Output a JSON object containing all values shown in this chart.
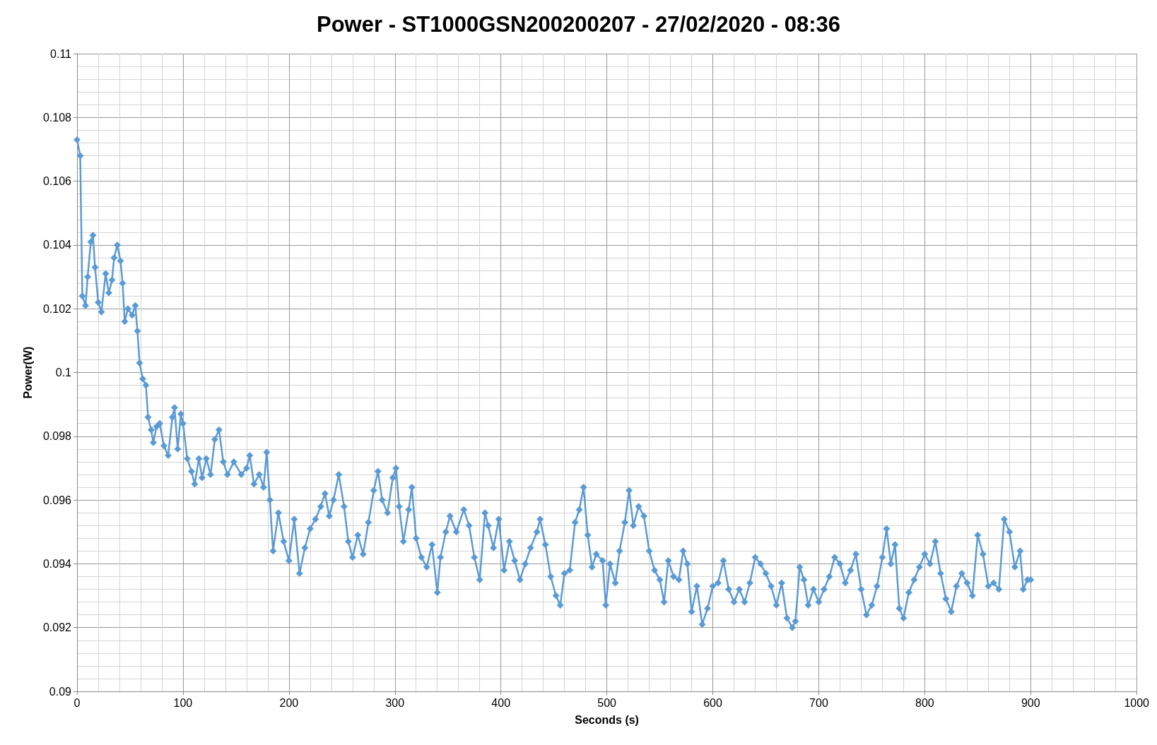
{
  "chart_data": {
    "type": "line",
    "title": "Power - ST1000GSN200200207 - 27/02/2020 - 08:36",
    "xlabel": "Seconds (s)",
    "ylabel": "Power(W)",
    "marker": "diamond",
    "line_style": "solid",
    "grid": true,
    "xlim": [
      0,
      1000
    ],
    "xticks": [
      0,
      100,
      200,
      300,
      400,
      500,
      600,
      700,
      800,
      900,
      1000
    ],
    "ylim": [
      0.09,
      0.11
    ],
    "yticks": [
      0.09,
      0.092,
      0.094,
      0.096,
      0.098,
      0.1,
      0.102,
      0.104,
      0.106,
      0.108,
      0.11
    ],
    "series": [
      {
        "color": "#5b9bd5",
        "x": [
          0,
          3,
          5,
          8,
          10,
          13,
          15,
          17,
          20,
          23,
          27,
          30,
          33,
          35,
          38,
          41,
          43,
          45,
          48,
          52,
          55,
          57,
          59,
          62,
          65,
          67,
          70,
          72,
          75,
          78,
          82,
          86,
          90,
          92,
          95,
          98,
          100,
          104,
          108,
          111,
          115,
          118,
          122,
          126,
          130,
          134,
          138,
          142,
          148,
          155,
          160,
          163,
          167,
          172,
          176,
          179,
          182,
          185,
          190,
          195,
          200,
          205,
          210,
          215,
          220,
          225,
          230,
          234,
          238,
          242,
          247,
          252,
          256,
          260,
          265,
          270,
          275,
          280,
          284,
          288,
          293,
          298,
          301,
          304,
          308,
          313,
          316,
          320,
          325,
          330,
          335,
          340,
          343,
          348,
          352,
          358,
          365,
          370,
          375,
          380,
          385,
          388,
          393,
          398,
          403,
          408,
          413,
          418,
          423,
          428,
          434,
          437,
          442,
          447,
          452,
          456,
          460,
          465,
          470,
          474,
          478,
          482,
          486,
          490,
          496,
          499,
          503,
          508,
          512,
          517,
          521,
          525,
          530,
          535,
          540,
          545,
          550,
          554,
          558,
          563,
          568,
          572,
          576,
          580,
          585,
          590,
          595,
          600,
          605,
          610,
          615,
          620,
          625,
          630,
          635,
          640,
          645,
          650,
          655,
          660,
          665,
          670,
          675,
          678,
          682,
          686,
          690,
          695,
          700,
          705,
          710,
          715,
          720,
          725,
          730,
          735,
          740,
          745,
          750,
          755,
          760,
          764,
          768,
          772,
          776,
          780,
          785,
          790,
          795,
          800,
          805,
          810,
          815,
          820,
          825,
          830,
          835,
          840,
          845,
          850,
          855,
          860,
          865,
          870,
          875,
          880,
          885,
          890,
          893,
          897,
          900
        ],
        "values": [
          0.1073,
          0.1068,
          0.1024,
          0.1021,
          0.103,
          0.1041,
          0.1043,
          0.1033,
          0.1022,
          0.1019,
          0.1031,
          0.1025,
          0.1029,
          0.1036,
          0.104,
          0.1035,
          0.1028,
          0.1016,
          0.102,
          0.1018,
          0.1021,
          0.1013,
          0.1003,
          0.0998,
          0.0996,
          0.0986,
          0.0982,
          0.0978,
          0.0983,
          0.0984,
          0.0977,
          0.0974,
          0.0986,
          0.0989,
          0.0976,
          0.0987,
          0.0984,
          0.0973,
          0.0969,
          0.0965,
          0.0973,
          0.0967,
          0.0973,
          0.0968,
          0.0979,
          0.0982,
          0.0972,
          0.0968,
          0.0972,
          0.0968,
          0.097,
          0.0974,
          0.0965,
          0.0968,
          0.0964,
          0.0975,
          0.096,
          0.0944,
          0.0956,
          0.0947,
          0.0941,
          0.0954,
          0.0937,
          0.0945,
          0.0951,
          0.0954,
          0.0958,
          0.0962,
          0.0955,
          0.096,
          0.0968,
          0.0958,
          0.0947,
          0.0942,
          0.0949,
          0.0943,
          0.0953,
          0.0963,
          0.0969,
          0.096,
          0.0956,
          0.0967,
          0.097,
          0.0958,
          0.0947,
          0.0957,
          0.0964,
          0.0948,
          0.0942,
          0.0939,
          0.0946,
          0.0931,
          0.0942,
          0.095,
          0.0955,
          0.095,
          0.0957,
          0.0952,
          0.0942,
          0.0935,
          0.0956,
          0.0952,
          0.0945,
          0.0954,
          0.0938,
          0.0947,
          0.0941,
          0.0935,
          0.094,
          0.0945,
          0.095,
          0.0954,
          0.0946,
          0.0936,
          0.093,
          0.0927,
          0.0937,
          0.0938,
          0.0953,
          0.0957,
          0.0964,
          0.0949,
          0.0939,
          0.0943,
          0.0941,
          0.0927,
          0.094,
          0.0934,
          0.0944,
          0.0953,
          0.0963,
          0.0952,
          0.0958,
          0.0955,
          0.0944,
          0.0938,
          0.0935,
          0.0928,
          0.0941,
          0.0936,
          0.0935,
          0.0944,
          0.094,
          0.0925,
          0.0933,
          0.0921,
          0.0926,
          0.0933,
          0.0934,
          0.0941,
          0.0932,
          0.0928,
          0.0932,
          0.0928,
          0.0934,
          0.0942,
          0.094,
          0.0937,
          0.0933,
          0.0927,
          0.0934,
          0.0923,
          0.092,
          0.0922,
          0.0939,
          0.0935,
          0.0927,
          0.0932,
          0.0928,
          0.0932,
          0.0936,
          0.0942,
          0.094,
          0.0934,
          0.0938,
          0.0943,
          0.0932,
          0.0924,
          0.0927,
          0.0933,
          0.0942,
          0.0951,
          0.094,
          0.0946,
          0.0926,
          0.0923,
          0.0931,
          0.0935,
          0.0939,
          0.0943,
          0.094,
          0.0947,
          0.0937,
          0.0929,
          0.0925,
          0.0933,
          0.0937,
          0.0934,
          0.093,
          0.0949,
          0.0943,
          0.0933,
          0.0934,
          0.0932,
          0.0954,
          0.095,
          0.0939,
          0.0944,
          0.0932,
          0.0935,
          0.0935
        ]
      }
    ]
  }
}
